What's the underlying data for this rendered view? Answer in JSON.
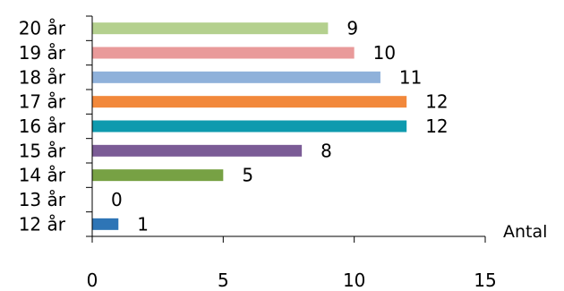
{
  "chart_data": {
    "type": "bar",
    "orientation": "horizontal",
    "categories": [
      "12 år",
      "13 år",
      "14 år",
      "15 år",
      "16 år",
      "17 år",
      "18 år",
      "19 år",
      "20 år"
    ],
    "values": [
      1,
      0,
      5,
      8,
      12,
      12,
      11,
      10,
      9
    ],
    "value_labels": [
      "1",
      "0",
      "5",
      "8",
      "12",
      "12",
      "11",
      "10",
      "9"
    ],
    "colors": [
      "#2E75B6",
      "#8064A2",
      "#77A144",
      "#7B5C96",
      "#0E9AAE",
      "#F2883B",
      "#8FB1DA",
      "#E99A9A",
      "#B4D08E"
    ],
    "xlabel": "Antal",
    "ylabel": "",
    "xlim": [
      0,
      15
    ],
    "xticks": [
      "0",
      "5",
      "10",
      "15"
    ],
    "grid": false,
    "legend": "none"
  }
}
